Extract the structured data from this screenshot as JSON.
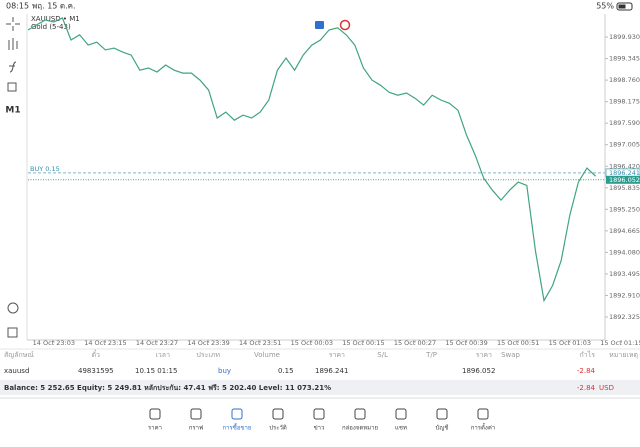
{
  "status_bar": {
    "time": "08:15",
    "date": "พฤ. 15 ต.ค.",
    "battery": "55%"
  },
  "chart_data": {
    "type": "line",
    "title": "XAUUSD • M1",
    "subtitle": "Gold (5-43)",
    "timeframe": "M1",
    "color": "#3fa57c",
    "categories": [
      null,
      null,
      null,
      "14 Oct 23:03",
      null,
      null,
      null,
      null,
      null,
      "14 Oct 23:15",
      null,
      null,
      null,
      null,
      null,
      "14 Oct 23:27",
      null,
      null,
      null,
      null,
      null,
      "14 Oct 23:39",
      null,
      null,
      null,
      null,
      null,
      "14 Oct 23:51",
      null,
      null,
      null,
      null,
      null,
      "15 Oct 00:03",
      null,
      null,
      null,
      null,
      null,
      "15 Oct 00:15",
      null,
      null,
      null,
      null,
      null,
      "15 Oct 00:27",
      null,
      null,
      null,
      null,
      null,
      "15 Oct 00:39",
      null,
      null,
      null,
      null,
      null,
      "15 Oct 00:51",
      null,
      null,
      null,
      null,
      null,
      "15 Oct 01:03",
      null,
      null,
      null,
      null,
      null,
      "15 Oct 01:15"
    ],
    "values": [
      1900.12,
      1900.26,
      1900.39,
      1900.34,
      1900.45,
      1899.85,
      1899.99,
      1899.71,
      1899.79,
      1899.58,
      1899.63,
      1899.52,
      1899.44,
      1899.03,
      1899.09,
      1898.98,
      1899.17,
      1899.03,
      1898.95,
      1898.95,
      1898.76,
      1898.49,
      1897.73,
      1897.89,
      1897.67,
      1897.81,
      1897.73,
      1897.89,
      1898.22,
      1899.03,
      1899.36,
      1899.03,
      1899.44,
      1899.71,
      1899.85,
      1900.12,
      1900.18,
      1899.99,
      1899.71,
      1899.09,
      1898.76,
      1898.62,
      1898.43,
      1898.35,
      1898.41,
      1898.27,
      1898.08,
      1898.35,
      1898.22,
      1898.13,
      1897.94,
      1897.26,
      1896.72,
      1896.09,
      1895.77,
      1895.5,
      1895.77,
      1895.99,
      1895.9,
      1894.13,
      1892.77,
      1893.18,
      1893.86,
      1895.09,
      1895.99,
      1896.37,
      1896.15,
      null,
      null,
      null
    ],
    "ylim": [
      1891.7,
      1900.556
    ],
    "yticks": [
      {
        "value": 1899.93,
        "label": "1899.930"
      },
      1899.345,
      {
        "value": 1898.76,
        "label": "1898.760"
      },
      1898.175,
      {
        "value": 1897.59,
        "label": "1897.590"
      },
      1897.005,
      {
        "value": 1896.42,
        "label": "1896.420"
      },
      1895.835,
      {
        "value": 1895.25,
        "label": "1895.250"
      },
      1894.665,
      {
        "value": 1894.08,
        "label": "1894.080"
      },
      1893.495,
      {
        "value": 1892.91,
        "label": "1892.910"
      },
      1892.325
    ],
    "order_line": {
      "label": "BUY 0.15",
      "value": 1896.241
    },
    "bid_line": 1896.052
  },
  "positions": {
    "header": [
      "สัญลักษณ์",
      "ตั๋ว",
      "เวลา",
      "ประเภท",
      "Volume",
      "ราคา",
      "S/L",
      "T/P",
      "ราคา",
      "Swap",
      "กำไร",
      "หมายเหตุ"
    ],
    "row": {
      "symbol": "xauusd",
      "ticket": "49831595",
      "time": "10.15 01:15",
      "type": "buy",
      "volume": "0.15",
      "price": "1896.241",
      "current_price": "1896.052",
      "profit": "-2.84"
    }
  },
  "summary": {
    "text": "Balance: 5 252.65 Equity: 5 249.81 หลักประกัน: 47.41 ฟรี: 5 202.40 Level: 11 073.21%",
    "profit": "-2.84",
    "currency": "USD"
  },
  "nav": [
    "ราคา",
    "กราฟ",
    "การซื้อขาย",
    "ประวัติ",
    "ข่าว",
    "กล่องจดหมาย",
    "แชท",
    "บัญชี",
    "การตั้งค่า"
  ]
}
